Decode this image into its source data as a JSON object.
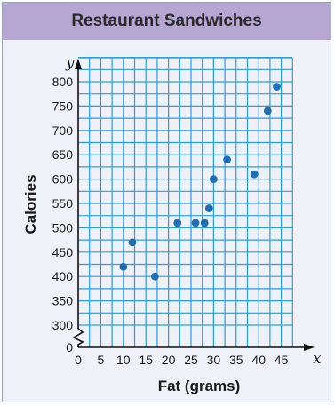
{
  "chart_data": {
    "type": "scatter",
    "title": "Restaurant Sandwiches",
    "xlabel": "Fat (grams)",
    "ylabel": "Calories",
    "x_axis_variable": "x",
    "y_axis_variable": "y",
    "xlim": [
      0,
      45
    ],
    "ylim": [
      300,
      800
    ],
    "x_ticks": [
      0,
      5,
      10,
      15,
      20,
      25,
      30,
      35,
      40,
      45
    ],
    "y_ticks": [
      0,
      300,
      350,
      400,
      450,
      500,
      550,
      600,
      650,
      700,
      750,
      800
    ],
    "y_axis_break": true,
    "grid": true,
    "point_color": "#1f6fb5",
    "grid_color": "#2b9be0",
    "points": [
      {
        "x": 10,
        "y": 420
      },
      {
        "x": 12,
        "y": 470
      },
      {
        "x": 17,
        "y": 400
      },
      {
        "x": 22,
        "y": 510
      },
      {
        "x": 26,
        "y": 510
      },
      {
        "x": 28,
        "y": 510
      },
      {
        "x": 29,
        "y": 540
      },
      {
        "x": 30,
        "y": 600
      },
      {
        "x": 33,
        "y": 640
      },
      {
        "x": 39,
        "y": 610
      },
      {
        "x": 42,
        "y": 740
      },
      {
        "x": 44,
        "y": 790
      }
    ]
  }
}
